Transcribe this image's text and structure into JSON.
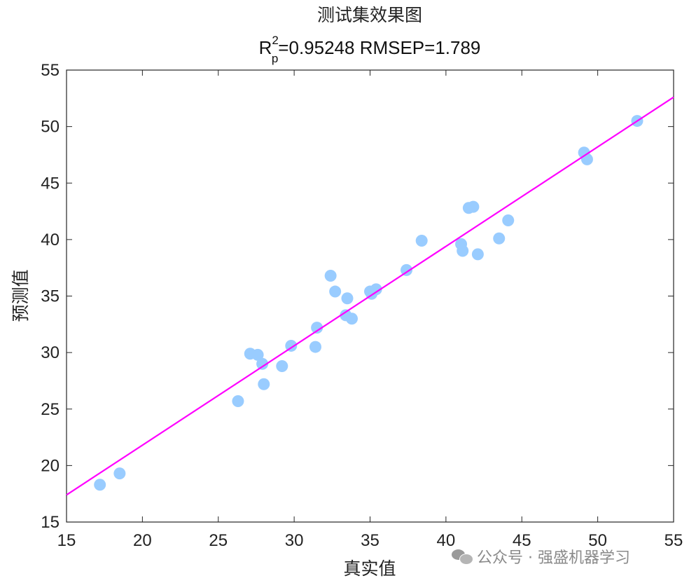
{
  "chart_data": {
    "type": "scatter",
    "title": "测试集效果图",
    "subtitle": {
      "r_base": "R",
      "r_sup": "2",
      "r_sub": "p",
      "rest": "=0.95248  RMSEP=1.789"
    },
    "xlabel": "真实值",
    "ylabel": "预测值",
    "xlim": [
      15,
      55
    ],
    "ylim": [
      15,
      55
    ],
    "xticks": [
      15,
      20,
      25,
      30,
      35,
      40,
      45,
      50,
      55
    ],
    "yticks": [
      15,
      20,
      25,
      30,
      35,
      40,
      45,
      50,
      55
    ],
    "grid": false,
    "point_color": "#99ccff",
    "fit_line_color": "#ff00ff",
    "fit_line": {
      "x": [
        15,
        55
      ],
      "y": [
        17.4,
        52.6
      ]
    },
    "points": [
      {
        "x": 17.2,
        "y": 18.3
      },
      {
        "x": 18.5,
        "y": 19.3
      },
      {
        "x": 26.3,
        "y": 25.7
      },
      {
        "x": 27.1,
        "y": 29.9
      },
      {
        "x": 27.6,
        "y": 29.8
      },
      {
        "x": 27.9,
        "y": 29.0
      },
      {
        "x": 28.0,
        "y": 27.2
      },
      {
        "x": 29.2,
        "y": 28.8
      },
      {
        "x": 29.8,
        "y": 30.6
      },
      {
        "x": 31.4,
        "y": 30.5
      },
      {
        "x": 31.5,
        "y": 32.2
      },
      {
        "x": 32.4,
        "y": 36.8
      },
      {
        "x": 32.7,
        "y": 35.4
      },
      {
        "x": 33.4,
        "y": 33.3
      },
      {
        "x": 33.5,
        "y": 34.8
      },
      {
        "x": 33.8,
        "y": 33.0
      },
      {
        "x": 35.0,
        "y": 35.4
      },
      {
        "x": 35.1,
        "y": 35.2
      },
      {
        "x": 35.4,
        "y": 35.6
      },
      {
        "x": 37.4,
        "y": 37.3
      },
      {
        "x": 38.4,
        "y": 39.9
      },
      {
        "x": 41.0,
        "y": 39.6
      },
      {
        "x": 41.1,
        "y": 39.0
      },
      {
        "x": 41.5,
        "y": 42.8
      },
      {
        "x": 41.8,
        "y": 42.9
      },
      {
        "x": 42.1,
        "y": 38.7
      },
      {
        "x": 43.5,
        "y": 40.1
      },
      {
        "x": 44.1,
        "y": 41.7
      },
      {
        "x": 49.1,
        "y": 47.7
      },
      {
        "x": 49.3,
        "y": 47.1
      },
      {
        "x": 52.6,
        "y": 50.5
      }
    ]
  },
  "watermark": {
    "text": "公众号 · 强盛机器学习",
    "icon": "wechat-icon"
  }
}
